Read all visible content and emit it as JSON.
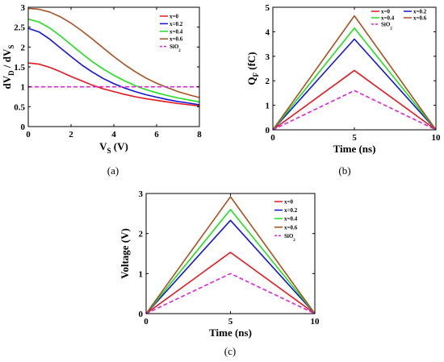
{
  "chart_data": [
    {
      "type": "line",
      "panel": "(a)",
      "ylabel_parts": [
        "dV",
        "D",
        " / dV",
        "S"
      ],
      "xlabel_parts": [
        "V",
        "S",
        " (V)"
      ],
      "xlim": [
        0,
        8
      ],
      "ylim": [
        0,
        3
      ],
      "xticks": [
        0,
        2,
        4,
        6,
        8
      ],
      "yticks": [
        0,
        0.5,
        1,
        1.5,
        2,
        2.5,
        3
      ],
      "ytick_labels": [
        "0",
        "0.5",
        "1",
        "1.5",
        "2",
        "2.5",
        "3"
      ],
      "legend_position": "top-right",
      "legend_columns": 1,
      "series": [
        {
          "name": "x=0",
          "color": "#e8161c",
          "dash": false,
          "x": [
            0,
            0.5,
            1,
            1.5,
            2,
            2.5,
            3,
            3.5,
            4,
            4.5,
            5,
            5.5,
            6,
            6.5,
            7,
            7.5,
            8
          ],
          "y": [
            1.6,
            1.57,
            1.49,
            1.38,
            1.26,
            1.15,
            1.04,
            0.95,
            0.88,
            0.81,
            0.75,
            0.7,
            0.66,
            0.62,
            0.58,
            0.55,
            0.52
          ]
        },
        {
          "name": "x=0.2",
          "color": "#1414d8",
          "dash": false,
          "x": [
            0,
            0.5,
            1,
            1.5,
            2,
            2.5,
            3,
            3.5,
            4,
            4.5,
            5,
            5.5,
            6,
            6.5,
            7,
            7.5,
            8
          ],
          "y": [
            2.47,
            2.38,
            2.2,
            1.98,
            1.76,
            1.55,
            1.37,
            1.21,
            1.08,
            0.97,
            0.88,
            0.8,
            0.74,
            0.68,
            0.63,
            0.59,
            0.55
          ]
        },
        {
          "name": "x=0.4",
          "color": "#1fe01f",
          "dash": false,
          "x": [
            0,
            0.5,
            1,
            1.5,
            2,
            2.5,
            3,
            3.5,
            4,
            4.5,
            5,
            5.5,
            6,
            6.5,
            7,
            7.5,
            8
          ],
          "y": [
            2.7,
            2.63,
            2.48,
            2.28,
            2.06,
            1.84,
            1.63,
            1.45,
            1.29,
            1.15,
            1.03,
            0.93,
            0.85,
            0.78,
            0.72,
            0.67,
            0.62
          ]
        },
        {
          "name": "x=0.6",
          "color": "#a85020",
          "dash": false,
          "x": [
            0,
            0.5,
            1,
            1.5,
            2,
            2.5,
            3,
            3.5,
            4,
            4.5,
            5,
            5.5,
            6,
            6.5,
            7,
            7.5,
            8
          ],
          "y": [
            2.97,
            2.95,
            2.88,
            2.76,
            2.6,
            2.41,
            2.2,
            1.98,
            1.76,
            1.56,
            1.38,
            1.22,
            1.09,
            0.98,
            0.88,
            0.8,
            0.73
          ]
        },
        {
          "name": "SiO2",
          "name_parts": [
            "SiO",
            "2"
          ],
          "color": "#e020e0",
          "dash": true,
          "x": [
            0,
            8
          ],
          "y": [
            1,
            1
          ]
        }
      ]
    },
    {
      "type": "line",
      "panel": "(b)",
      "ylabel_parts": [
        "Q",
        "F",
        " (fC)"
      ],
      "xlabel": "Time (ns)",
      "xlim": [
        0,
        10
      ],
      "ylim": [
        0,
        5
      ],
      "xticks": [
        0,
        5,
        10
      ],
      "yticks": [
        0,
        1,
        2,
        3,
        4,
        5
      ],
      "legend_position": "top-right",
      "legend_columns": 2,
      "series": [
        {
          "name": "x=0",
          "color": "#e8161c",
          "dash": false,
          "x": [
            0,
            5,
            10
          ],
          "y": [
            0,
            2.42,
            0
          ]
        },
        {
          "name": "x=0.2",
          "color": "#1414d8",
          "dash": false,
          "x": [
            0,
            5,
            10
          ],
          "y": [
            0,
            3.7,
            0
          ]
        },
        {
          "name": "x=0.4",
          "color": "#1fe01f",
          "dash": false,
          "x": [
            0,
            5,
            10
          ],
          "y": [
            0,
            4.15,
            0
          ]
        },
        {
          "name": "x=0.6",
          "color": "#a85020",
          "dash": false,
          "x": [
            0,
            5,
            10
          ],
          "y": [
            0,
            4.65,
            0
          ]
        },
        {
          "name": "SiO2",
          "name_parts": [
            "SiO",
            "2"
          ],
          "color": "#e020e0",
          "dash": true,
          "x": [
            0,
            5,
            10
          ],
          "y": [
            0,
            1.6,
            0
          ]
        }
      ]
    },
    {
      "type": "line",
      "panel": "(c)",
      "ylabel": "Voltage (V)",
      "xlabel": "Time (ns)",
      "xlim": [
        0,
        10
      ],
      "ylim": [
        0,
        3
      ],
      "xticks": [
        0,
        5,
        10
      ],
      "yticks": [
        0,
        1,
        2,
        3
      ],
      "legend_position": "top-right",
      "legend_columns": 1,
      "series": [
        {
          "name": "x=0",
          "color": "#e8161c",
          "dash": false,
          "x": [
            0,
            5,
            10
          ],
          "y": [
            0,
            1.53,
            0
          ]
        },
        {
          "name": "x=0.2",
          "color": "#1414d8",
          "dash": false,
          "x": [
            0,
            5,
            10
          ],
          "y": [
            0,
            2.33,
            0
          ]
        },
        {
          "name": "x=0.4",
          "color": "#1fe01f",
          "dash": false,
          "x": [
            0,
            5,
            10
          ],
          "y": [
            0,
            2.6,
            0
          ]
        },
        {
          "name": "x=0.6",
          "color": "#a85020",
          "dash": false,
          "x": [
            0,
            5,
            10
          ],
          "y": [
            0,
            2.92,
            0
          ]
        },
        {
          "name": "SiO2",
          "name_parts": [
            "SiO",
            "2"
          ],
          "color": "#e020e0",
          "dash": true,
          "x": [
            0,
            5,
            10
          ],
          "y": [
            0,
            1.0,
            0
          ]
        }
      ]
    }
  ]
}
